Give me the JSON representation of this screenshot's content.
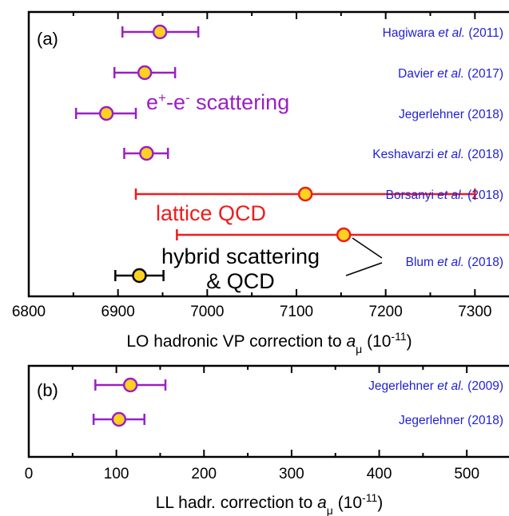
{
  "colors": {
    "ee": "#9b1fc4",
    "lattice": "#ee1c1c",
    "hybrid": "#000000",
    "marker_fill": "#ffd21f",
    "citation": "#1f1fd6"
  },
  "chart_data": [
    {
      "panel": "(a)",
      "type": "errorbar",
      "xlabel_text": "LO hadronic VP correction to ",
      "xlabel_var": "a",
      "xlabel_sub": "μ",
      "xlabel_unit": " (10",
      "xlabel_exp": "-11",
      "xlabel_close": ")",
      "xlim": [
        6800,
        7340
      ],
      "xticks": [
        6800,
        6900,
        7000,
        7100,
        7200,
        7300
      ],
      "tick_labels": [
        "6800",
        "6900",
        "7000",
        "7100",
        "7200",
        "7300"
      ],
      "grid": false,
      "entries": [
        {
          "citation_pre": "Hagiwara ",
          "citation_em": "et al.",
          "citation_post": " (2011)",
          "value": 6947,
          "lo": 6905,
          "hi": 6990,
          "group": "ee"
        },
        {
          "citation_pre": "Davier ",
          "citation_em": "et al.",
          "citation_post": " (2017)",
          "value": 6930,
          "lo": 6896,
          "hi": 6964,
          "group": "ee"
        },
        {
          "citation_pre": "Jegerlehner (2018)",
          "citation_em": "",
          "citation_post": "",
          "value": 6887,
          "lo": 6853,
          "hi": 6920,
          "group": "ee"
        },
        {
          "citation_pre": "Keshavarzi ",
          "citation_em": "et al.",
          "citation_post": " (2018)",
          "value": 6932,
          "lo": 6907,
          "hi": 6956,
          "group": "ee"
        },
        {
          "citation_pre": "Borsanyi ",
          "citation_em": "et al.",
          "citation_post": " (2018)",
          "value": 7110,
          "lo": 6920,
          "hi": 7300,
          "group": "lattice"
        },
        {
          "citation_pre": "",
          "citation_em": "",
          "citation_post": "",
          "value": 7153,
          "lo": 6966,
          "hi": 7340,
          "group": "lattice"
        },
        {
          "citation_pre": "",
          "citation_em": "",
          "citation_post": "",
          "value": 6924,
          "lo": 6897,
          "hi": 6951,
          "group": "hybrid"
        }
      ],
      "shared_citation": {
        "pre": "Blum ",
        "em": "et al.",
        "post": " (2018)"
      },
      "group_labels": {
        "ee_base1": "e",
        "ee_sup1": "+",
        "ee_mid": "-e",
        "ee_sup2": "-",
        "ee_tail": " scattering",
        "lattice": "lattice QCD",
        "hybrid_line1": "hybrid scattering",
        "hybrid_line2": "& QCD"
      }
    },
    {
      "panel": "(b)",
      "type": "errorbar",
      "xlabel_text": "LL hadr. correction to ",
      "xlabel_var": "a",
      "xlabel_sub": "μ",
      "xlabel_unit": " (10",
      "xlabel_exp": "-11",
      "xlabel_close": ")",
      "xlim": [
        0,
        550
      ],
      "xticks": [
        0,
        100,
        200,
        300,
        400,
        500
      ],
      "tick_labels": [
        "0",
        "100",
        "200",
        "300",
        "400",
        "500"
      ],
      "grid": false,
      "entries": [
        {
          "citation_pre": "Jegerlehner ",
          "citation_em": "et al.",
          "citation_post": " (2009)",
          "value": 116,
          "lo": 76,
          "hi": 156,
          "group": "ee"
        },
        {
          "citation_pre": "Jegerlehner (2018)",
          "citation_em": "",
          "citation_post": "",
          "value": 103,
          "lo": 74,
          "hi": 132,
          "group": "ee"
        }
      ]
    }
  ]
}
